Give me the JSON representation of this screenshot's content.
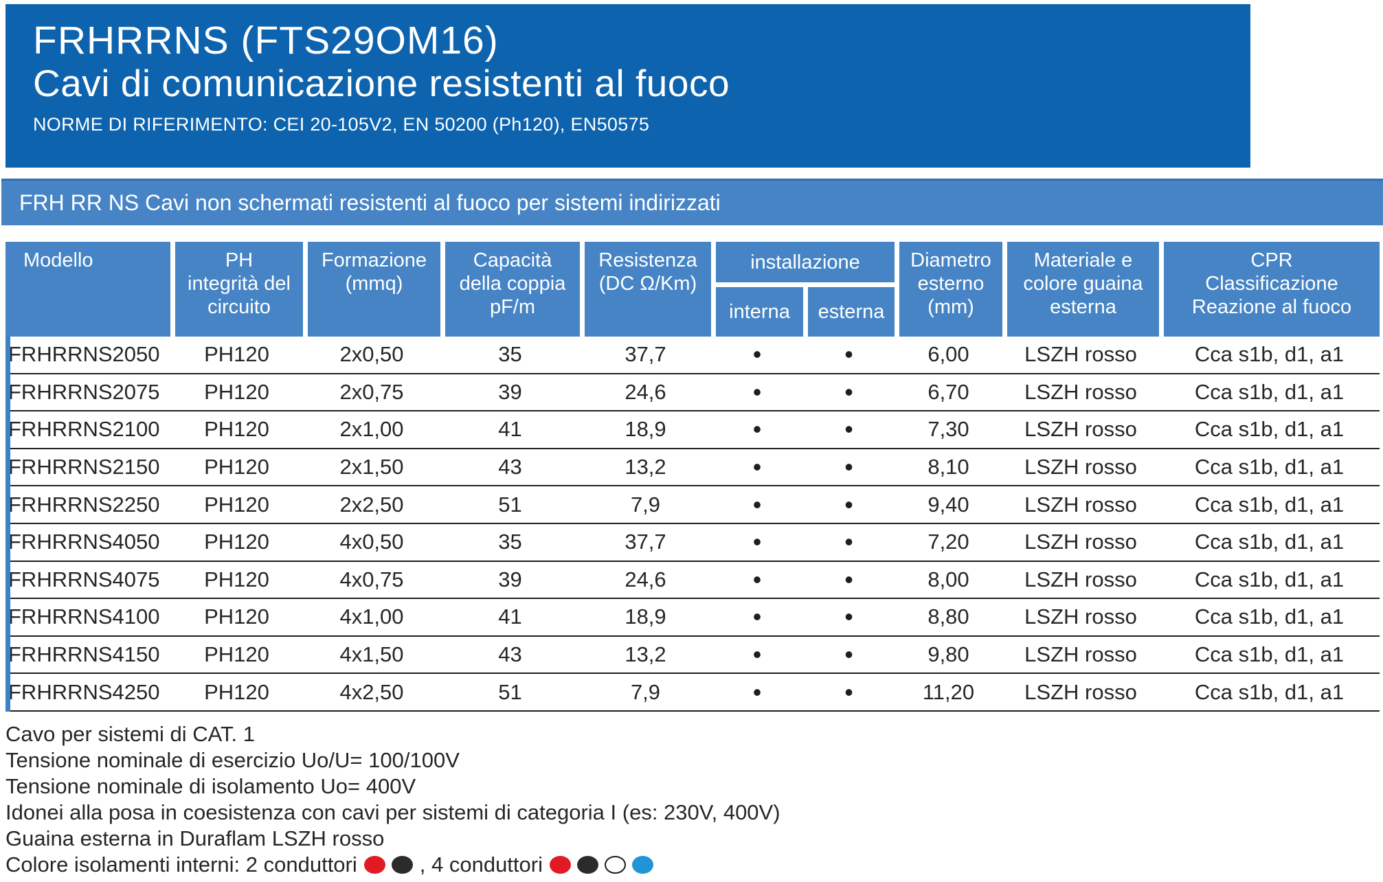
{
  "colors": {
    "header_bg": "#0d63ad",
    "banner_bg": "#4684c5",
    "table_header_bg": "#4684c5",
    "column_separator_blue": "#3b82c4",
    "row_line": "#1f1f1f",
    "text_dark": "#262626"
  },
  "header": {
    "title": "FRHRRNS (FTS29OM16)",
    "subtitle": "Cavi di comunicazione resistenti al fuoco",
    "norms": "NORME DI RIFERIMENTO: CEI 20-105V2, EN 50200 (Ph120), EN50575"
  },
  "banner": {
    "text": "FRH RR NS Cavi non schermati resistenti al fuoco per sistemi indirizzati"
  },
  "table": {
    "headers": {
      "modello": "Modello",
      "ph": "PH\nintegrità del\ncircuito",
      "formazione": "Formazione\n(mmq)",
      "capacita": "Capacità\ndella coppia\npF/m",
      "resistenza": "Resistenza\n(DC Ω/Km)",
      "installazione": "installazione",
      "interna": "interna",
      "esterna": "esterna",
      "diametro": "Diametro\nesterno\n(mm)",
      "materiale": "Materiale e\ncolore guaina\nesterna",
      "cpr": "CPR\nClassificazione\nReazione al fuoco"
    },
    "rows": [
      {
        "modello": "FRHRRNS2050",
        "ph": "PH120",
        "formazione": "2x0,50",
        "capacita": "35",
        "resistenza": "37,7",
        "interna": "•",
        "esterna": "•",
        "diametro": "6,00",
        "materiale": "LSZH rosso",
        "cpr": "Cca s1b, d1, a1"
      },
      {
        "modello": "FRHRRNS2075",
        "ph": "PH120",
        "formazione": "2x0,75",
        "capacita": "39",
        "resistenza": "24,6",
        "interna": "•",
        "esterna": "•",
        "diametro": "6,70",
        "materiale": "LSZH rosso",
        "cpr": "Cca s1b, d1, a1"
      },
      {
        "modello": "FRHRRNS2100",
        "ph": "PH120",
        "formazione": "2x1,00",
        "capacita": "41",
        "resistenza": "18,9",
        "interna": "•",
        "esterna": "•",
        "diametro": "7,30",
        "materiale": "LSZH rosso",
        "cpr": "Cca s1b, d1, a1"
      },
      {
        "modello": "FRHRRNS2150",
        "ph": "PH120",
        "formazione": "2x1,50",
        "capacita": "43",
        "resistenza": "13,2",
        "interna": "•",
        "esterna": "•",
        "diametro": "8,10",
        "materiale": "LSZH rosso",
        "cpr": "Cca s1b, d1, a1"
      },
      {
        "modello": "FRHRRNS2250",
        "ph": "PH120",
        "formazione": "2x2,50",
        "capacita": "51",
        "resistenza": "7,9",
        "interna": "•",
        "esterna": "•",
        "diametro": "9,40",
        "materiale": "LSZH rosso",
        "cpr": "Cca s1b, d1, a1"
      },
      {
        "modello": "FRHRRNS4050",
        "ph": "PH120",
        "formazione": "4x0,50",
        "capacita": "35",
        "resistenza": "37,7",
        "interna": "•",
        "esterna": "•",
        "diametro": "7,20",
        "materiale": "LSZH rosso",
        "cpr": "Cca s1b, d1, a1"
      },
      {
        "modello": "FRHRRNS4075",
        "ph": "PH120",
        "formazione": "4x0,75",
        "capacita": "39",
        "resistenza": "24,6",
        "interna": "•",
        "esterna": "•",
        "diametro": "8,00",
        "materiale": "LSZH rosso",
        "cpr": "Cca s1b, d1, a1"
      },
      {
        "modello": "FRHRRNS4100",
        "ph": "PH120",
        "formazione": "4x1,00",
        "capacita": "41",
        "resistenza": "18,9",
        "interna": "•",
        "esterna": "•",
        "diametro": "8,80",
        "materiale": "LSZH rosso",
        "cpr": "Cca s1b, d1, a1"
      },
      {
        "modello": "FRHRRNS4150",
        "ph": "PH120",
        "formazione": "4x1,50",
        "capacita": "43",
        "resistenza": "13,2",
        "interna": "•",
        "esterna": "•",
        "diametro": "9,80",
        "materiale": "LSZH rosso",
        "cpr": "Cca s1b, d1, a1"
      },
      {
        "modello": "FRHRRNS4250",
        "ph": "PH120",
        "formazione": "4x2,50",
        "capacita": "51",
        "resistenza": "7,9",
        "interna": "•",
        "esterna": "•",
        "diametro": "11,20",
        "materiale": "LSZH rosso",
        "cpr": "Cca s1b, d1, a1"
      }
    ]
  },
  "notes": {
    "lines": [
      "Cavo per sistemi di CAT. 1",
      "Tensione nominale di esercizio Uo/U= 100/100V",
      "Tensione nominale di isolamento Uo= 400V",
      "Idonei alla posa in coesistenza con cavi per sistemi di categoria I (es: 230V, 400V)",
      "Guaina esterna in Duraflam LSZH rosso"
    ],
    "conductors_line": {
      "prefix": "Colore isolamenti interni: 2 conduttori",
      "separator": ", 4 conduttori",
      "two_cond_dots": [
        {
          "name": "red",
          "hex": "#e11b23"
        },
        {
          "name": "black",
          "hex": "#2d2a2b"
        }
      ],
      "four_cond_dots": [
        {
          "name": "red",
          "hex": "#e11b23"
        },
        {
          "name": "black",
          "hex": "#2d2a2b"
        },
        {
          "name": "white",
          "hex": "#ffffff",
          "outline": "#1a1a1a"
        },
        {
          "name": "blue",
          "hex": "#2094d4"
        }
      ]
    }
  }
}
